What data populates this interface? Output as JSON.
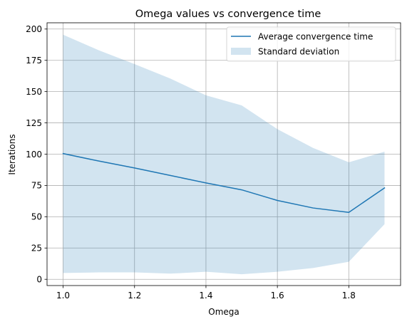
{
  "chart_data": {
    "type": "line",
    "title": "Omega values vs convergence time",
    "xlabel": "Omega",
    "ylabel": "Iterations",
    "xlim": [
      0.955,
      1.945
    ],
    "ylim": [
      -5,
      205
    ],
    "xticks": [
      1.0,
      1.2,
      1.4,
      1.6,
      1.8
    ],
    "xtick_labels": [
      "1.0",
      "1.2",
      "1.4",
      "1.6",
      "1.8"
    ],
    "yticks": [
      0,
      25,
      50,
      75,
      100,
      125,
      150,
      175,
      200
    ],
    "ytick_labels": [
      "0",
      "25",
      "50",
      "75",
      "100",
      "125",
      "150",
      "175",
      "200"
    ],
    "grid": true,
    "legend_position": "top-right",
    "x": [
      1.0,
      1.1,
      1.2,
      1.3,
      1.4,
      1.5,
      1.6,
      1.7,
      1.8,
      1.9
    ],
    "series": [
      {
        "name": "Average convergence time",
        "kind": "line",
        "color": "#1f77b4",
        "values": [
          100.5,
          94.5,
          89,
          83,
          77,
          71.5,
          63,
          57,
          53.5,
          73
        ]
      },
      {
        "name": "Standard deviation",
        "kind": "band",
        "color": "#1f77b4",
        "opacity": 0.2,
        "lower": [
          5,
          5.5,
          5.5,
          4.5,
          6,
          4,
          6,
          9,
          14,
          44
        ],
        "upper": [
          195.5,
          183,
          172,
          160.5,
          147,
          139,
          120,
          105,
          93.5,
          102
        ]
      }
    ]
  }
}
